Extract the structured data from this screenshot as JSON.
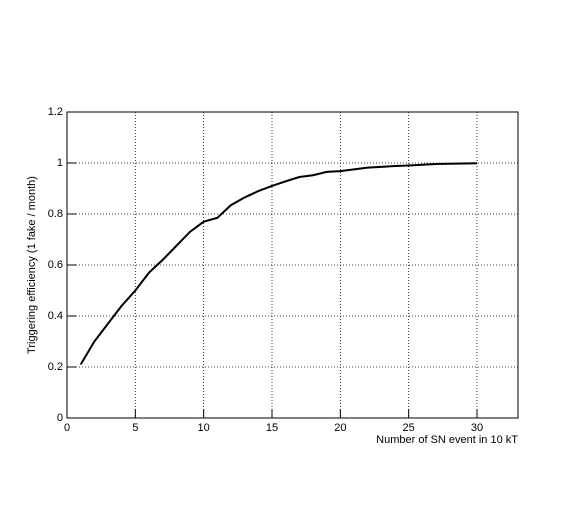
{
  "chart_data": {
    "type": "line",
    "x_label": "Number of SN event in 10 kT",
    "y_label": "Triggering efficiency (1 fake / month)",
    "x": [
      1,
      2,
      3,
      4,
      5,
      6,
      7,
      8,
      9,
      10,
      11,
      12,
      13,
      14,
      15,
      16,
      17,
      18,
      19,
      20,
      21,
      22,
      23,
      24,
      25,
      26,
      27,
      28,
      29,
      30
    ],
    "series": [
      {
        "color": "#000000",
        "values": [
          0.21,
          0.3,
          0.37,
          0.44,
          0.5,
          0.57,
          0.62,
          0.675,
          0.73,
          0.77,
          0.785,
          0.835,
          0.865,
          0.89,
          0.91,
          0.928,
          0.945,
          0.952,
          0.965,
          0.968,
          0.975,
          0.982,
          0.985,
          0.988,
          0.99,
          0.993,
          0.996,
          0.997,
          0.998,
          0.999
        ]
      }
    ],
    "xlim": [
      0,
      33
    ],
    "xticks": [
      0,
      5,
      10,
      15,
      20,
      25,
      30
    ],
    "ylim": [
      0,
      1.2
    ],
    "yticks": [
      0,
      0.2,
      0.4,
      0.6,
      0.8,
      1,
      1.2
    ],
    "grid": true
  }
}
